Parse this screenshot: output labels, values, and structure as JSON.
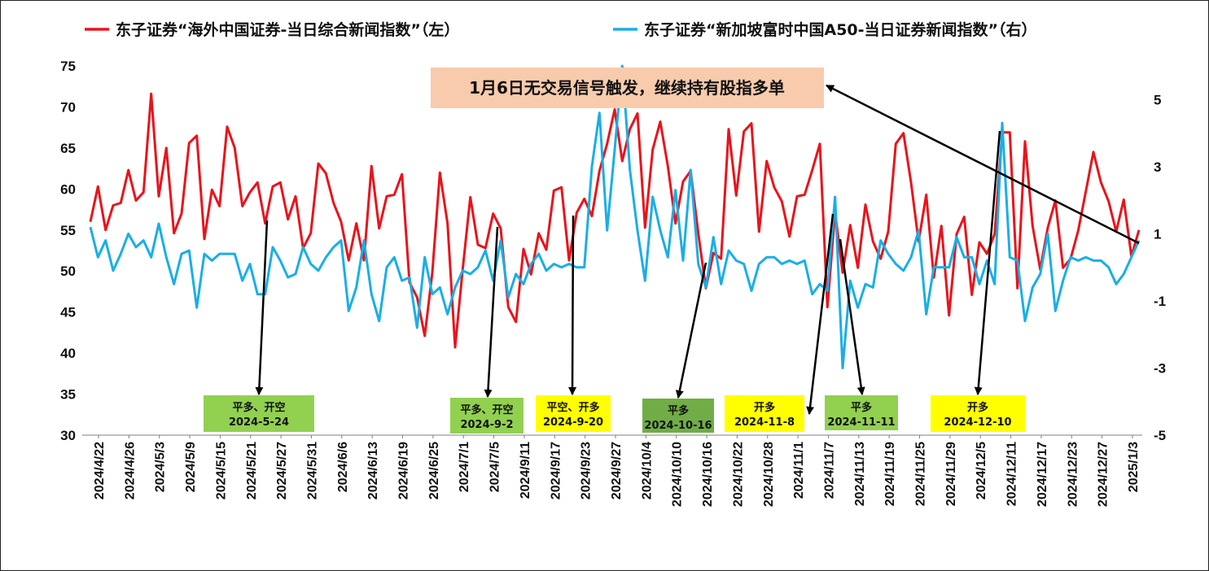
{
  "chart_data": {
    "type": "line",
    "title": "",
    "xlabel": "",
    "ylabel": "",
    "ylim": [
      30,
      75
    ],
    "y2lim": [
      -5,
      6
    ],
    "yticks": [
      30,
      35,
      40,
      45,
      50,
      55,
      60,
      65,
      70,
      75
    ],
    "y2ticks": [
      -5,
      -3,
      -1,
      1,
      3,
      5
    ],
    "x_tick_labels": [
      "2024/4/22",
      "2024/4/26",
      "2024/5/3",
      "2024/5/9",
      "2024/5/15",
      "2024/5/21",
      "2024/5/27",
      "2024/5/31",
      "2024/6/6",
      "2024/6/13",
      "2024/6/19",
      "2024/6/25",
      "2024/7/1",
      "2024/7/5",
      "2024/9/11",
      "2024/9/17",
      "2024/9/23",
      "2024/9/27",
      "2024/10/4",
      "2024/10/10",
      "2024/10/16",
      "2024/10/22",
      "2024/10/28",
      "2024/11/1",
      "2024/11/7",
      "2024/11/13",
      "2024/11/19",
      "2024/11/25",
      "2024/11/29",
      "2024/12/5",
      "2024/12/11",
      "2024/12/17",
      "2024/12/23",
      "2024/12/27",
      "2025/1/3"
    ],
    "legend_placement": "top",
    "grid": false,
    "series": [
      {
        "name": "东子证券“海外中国证券-当日综合新闻指数”（左）",
        "axis": "left",
        "color": "#e8141b",
        "values": [
          56,
          60.3,
          55,
          58,
          58.3,
          62.3,
          58.6,
          59.6,
          71.6,
          59.1,
          65,
          54.6,
          57,
          65.6,
          66.5,
          53.9,
          59.9,
          57.9,
          67.6,
          65,
          57.9,
          59.6,
          60.8,
          55.8,
          60.3,
          60.8,
          56.3,
          59.1,
          52.8,
          54.6,
          63.1,
          61.9,
          58.3,
          56,
          51.3,
          55.8,
          51.3,
          62.8,
          55.2,
          59.1,
          59.3,
          61.8,
          48.6,
          46.8,
          42.1,
          49.8,
          62,
          55.8,
          40.7,
          50.2,
          59,
          53.2,
          52.8,
          57,
          55.2,
          45.6,
          43.8,
          52.7,
          49.6,
          54.6,
          52.6,
          59.8,
          60.2,
          51.3,
          57.1,
          58.8,
          56.7,
          62.2,
          65.5,
          69.7,
          63.4,
          67.3,
          69.2,
          55.3,
          64.8,
          68.2,
          62.8,
          55.8,
          60.9,
          62.2,
          54.6,
          47.9,
          52.2,
          51.5,
          67.3,
          59.2,
          67,
          68,
          54.8,
          63.4,
          60.2,
          58.5,
          54.2,
          59.1,
          59.3,
          62.3,
          65.5,
          45.6,
          57.2,
          49.8,
          55.6,
          50.4,
          58.1,
          53.6,
          51.5,
          54.8,
          65.5,
          66.8,
          60.8,
          53.6,
          59.3,
          49.2,
          55.5,
          44.6,
          54.5,
          56.6,
          47.1,
          53.5,
          52.1,
          54.5,
          66.9,
          66.9,
          47.9,
          65.8,
          55.5,
          50.2,
          55.3,
          58.6,
          50.4,
          51.5,
          54.9,
          59.7,
          64.5,
          60.8,
          58.5,
          54.8,
          58.7,
          51.8,
          55
        ]
      },
      {
        "name": "东子证券“新加坡富时中国A50-当日证券新闻指数”（右）",
        "axis": "right",
        "color": "#1aaee6",
        "values": [
          1.2,
          0.3,
          0.8,
          -0.1,
          0.4,
          1,
          0.6,
          0.8,
          0.3,
          1.3,
          0.3,
          -0.5,
          0.4,
          0.5,
          -1.2,
          0.4,
          0.2,
          0.4,
          0.4,
          0.4,
          -0.4,
          0.1,
          -0.8,
          -0.8,
          0.6,
          0.2,
          -0.3,
          -0.2,
          0.6,
          0.1,
          -0.1,
          0.3,
          0.6,
          0.8,
          -1.3,
          -0.6,
          0.8,
          -0.8,
          -1.6,
          0,
          0.3,
          -0.4,
          -0.3,
          -1.8,
          0.3,
          -0.8,
          -0.6,
          -1.4,
          -0.6,
          -0.1,
          -0.2,
          0,
          0.5,
          -0.4,
          0.8,
          -0.9,
          -0.2,
          -0.5,
          0.1,
          0.4,
          -0.1,
          0.1,
          0,
          0.1,
          0,
          0,
          3,
          4.6,
          1.1,
          3.5,
          6,
          2.9,
          1.1,
          -0.4,
          2.1,
          1.1,
          0.3,
          2.3,
          0.2,
          2.9,
          0.1,
          -0.6,
          0.9,
          -0.5,
          0.5,
          0.2,
          0.1,
          -0.7,
          0.1,
          0.3,
          0.3,
          0.1,
          0.2,
          0.1,
          0.2,
          -0.8,
          -0.5,
          -0.7,
          2.1,
          -3,
          -0.4,
          -1.2,
          -0.5,
          -0.6,
          0.8,
          0.4,
          0.1,
          -0.1,
          0.3,
          1.1,
          -1.4,
          0,
          0,
          0,
          0.9,
          0.3,
          0.3,
          -0.5,
          0.2,
          -0.5,
          4.3,
          0.3,
          0.2,
          -1.6,
          -0.6,
          -0.2,
          1,
          -1.3,
          -0.4,
          0.3,
          0.2,
          0.3,
          0.2,
          0.2,
          0,
          -0.5,
          -0.2,
          0.3,
          0.8
        ]
      }
    ],
    "annotations": {
      "note": "1月6日无交易信号触发，继续持有股指多单",
      "signals": [
        {
          "line1": "平多、开空",
          "line2": "2024-5-24",
          "color": "#92d050"
        },
        {
          "line1": "平多、开空",
          "line2": "2024-9-2",
          "color": "#92d050"
        },
        {
          "line1": "平空、开多",
          "line2": "2024-9-20",
          "color": "#ffff00"
        },
        {
          "line1": "平多",
          "line2": "2024-10-16",
          "color": "#70ad47"
        },
        {
          "line1": "开多",
          "line2": "2024-11-8",
          "color": "#ffff00"
        },
        {
          "line1": "平多",
          "line2": "2024-11-11",
          "color": "#92d050"
        },
        {
          "line1": "开多",
          "line2": "2024-12-10",
          "color": "#ffff00"
        }
      ]
    }
  },
  "colors": {
    "note_bg": "#f8cbad",
    "arrow": "#000000",
    "axis": "#7f7f7f"
  }
}
